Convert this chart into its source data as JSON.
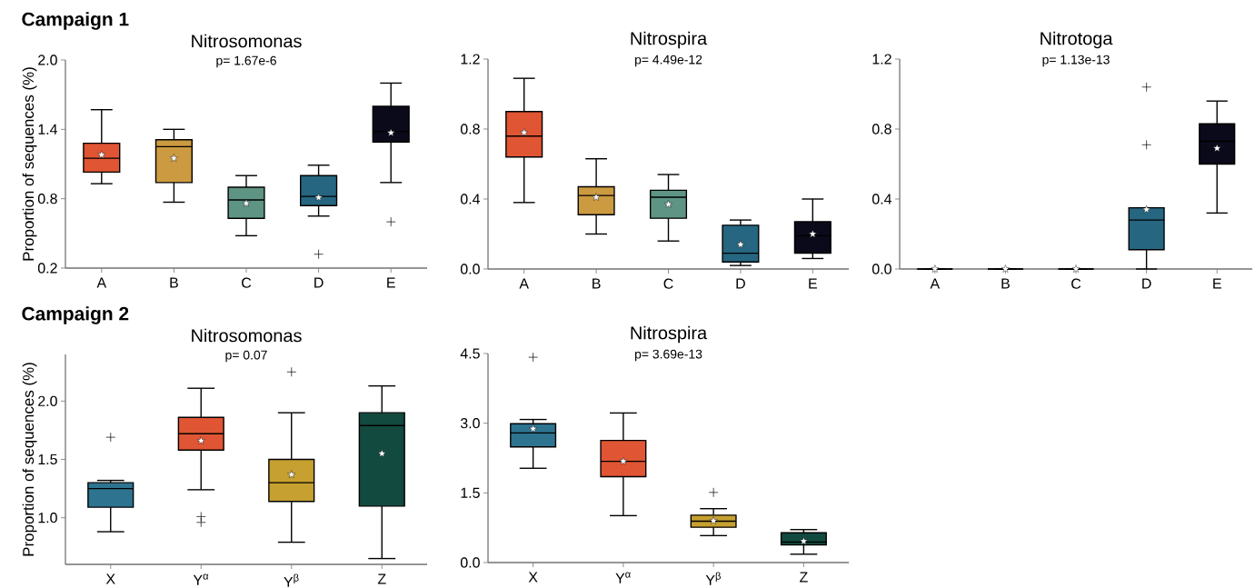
{
  "chart_data": [
    {
      "type": "box",
      "title": "Nitrosomonas",
      "subtitle": "p= 1.67e-6",
      "ylabel": "Proportion of sequences (%)",
      "annotations": [
        "Campaign 1"
      ],
      "categories": [
        "A",
        "B",
        "C",
        "D",
        "E"
      ],
      "colors": [
        "#e05533",
        "#cc9a40",
        "#5e9483",
        "#266680",
        "#0a0a1a"
      ],
      "boxes": [
        {
          "low": 0.93,
          "q1": 1.03,
          "median": 1.15,
          "q3": 1.28,
          "high": 1.57,
          "mean": 1.18
        },
        {
          "low": 0.77,
          "q1": 0.94,
          "median": 1.25,
          "q3": 1.31,
          "high": 1.4,
          "mean": 1.15
        },
        {
          "low": 0.48,
          "q1": 0.63,
          "median": 0.79,
          "q3": 0.9,
          "high": 1.0,
          "mean": 0.76
        },
        {
          "low": 0.65,
          "q1": 0.74,
          "median": 0.82,
          "q3": 1.0,
          "high": 1.09,
          "mean": 0.81,
          "outliers": [
            0.32
          ]
        },
        {
          "low": 0.94,
          "q1": 1.29,
          "median": 1.38,
          "q3": 1.6,
          "high": 1.8,
          "mean": 1.37,
          "outliers": [
            0.6
          ]
        }
      ],
      "ylim": [
        0.2,
        2.0
      ],
      "yticks": [
        0.2,
        0.8,
        1.4,
        {
          "value": 2.0,
          "label": "2.0"
        }
      ]
    },
    {
      "type": "box",
      "title": "Nitrospira",
      "subtitle": "p= 4.49e-12",
      "categories": [
        "A",
        "B",
        "C",
        "D",
        "E"
      ],
      "colors": [
        "#e05533",
        "#cc9a40",
        "#5e9483",
        "#266680",
        "#0a0a1a"
      ],
      "boxes": [
        {
          "low": 0.38,
          "q1": 0.64,
          "median": 0.76,
          "q3": 0.9,
          "high": 1.09,
          "mean": 0.78
        },
        {
          "low": 0.2,
          "q1": 0.31,
          "median": 0.42,
          "q3": 0.47,
          "high": 0.63,
          "mean": 0.41
        },
        {
          "low": 0.16,
          "q1": 0.29,
          "median": 0.41,
          "q3": 0.45,
          "high": 0.54,
          "mean": 0.37
        },
        {
          "low": 0.02,
          "q1": 0.04,
          "median": 0.09,
          "q3": 0.25,
          "high": 0.28,
          "mean": 0.14
        },
        {
          "low": 0.06,
          "q1": 0.09,
          "median": 0.19,
          "q3": 0.27,
          "high": 0.4,
          "mean": 0.2
        }
      ],
      "ylim": [
        0.0,
        1.2
      ],
      "yticks": [
        {
          "value": 0.0,
          "label": "0.0"
        },
        0.4,
        0.8,
        1.2
      ]
    },
    {
      "type": "box",
      "title": "Nitrotoga",
      "subtitle": "p= 1.13e-13",
      "categories": [
        "A",
        "B",
        "C",
        "D",
        "E"
      ],
      "colors": [
        "#000000",
        "#000000",
        "#000000",
        "#266680",
        "#0a0a1a"
      ],
      "boxes": [
        {
          "low": 0.0,
          "q1": 0.0,
          "median": 0.0,
          "q3": 0.0,
          "high": 0.0,
          "mean": 0.0
        },
        {
          "low": 0.0,
          "q1": 0.0,
          "median": 0.0,
          "q3": 0.0,
          "high": 0.0,
          "mean": 0.0
        },
        {
          "low": 0.0,
          "q1": 0.0,
          "median": 0.0,
          "q3": 0.0,
          "high": 0.0,
          "mean": 0.0
        },
        {
          "low": 0.0,
          "q1": 0.11,
          "median": 0.28,
          "q3": 0.35,
          "high": 0.35,
          "mean": 0.34,
          "outliers": [
            0.71,
            1.04
          ]
        },
        {
          "low": 0.32,
          "q1": 0.6,
          "median": 0.73,
          "q3": 0.83,
          "high": 0.96,
          "mean": 0.69
        }
      ],
      "ylim": [
        0.0,
        1.2
      ],
      "yticks": [
        {
          "value": 0.0,
          "label": "0.0"
        },
        0.4,
        0.8,
        1.2
      ]
    },
    {
      "type": "box",
      "title": "Nitrosomonas",
      "subtitle": "p= 0.07",
      "ylabel": "Proportion of sequences (%)",
      "annotations": [
        "Campaign 2"
      ],
      "categories": [
        "X",
        "Y$^{α}$",
        "Y$^{β}$",
        "Z"
      ],
      "colors": [
        "#2e7490",
        "#e05533",
        "#c6a030",
        "#124a40"
      ],
      "boxes": [
        {
          "low": 0.88,
          "q1": 1.09,
          "median": 1.25,
          "q3": 1.3,
          "high": 1.32,
          "outliers": [
            1.69
          ]
        },
        {
          "low": 1.24,
          "q1": 1.58,
          "median": 1.72,
          "q3": 1.86,
          "high": 2.11,
          "mean": 1.66,
          "outliers": [
            1.01,
            0.96
          ]
        },
        {
          "low": 0.79,
          "q1": 1.14,
          "median": 1.3,
          "q3": 1.5,
          "high": 1.9,
          "mean": 1.37,
          "outliers": [
            2.25
          ]
        },
        {
          "low": 0.65,
          "q1": 1.1,
          "median": 1.79,
          "q3": 1.9,
          "high": 2.13,
          "mean": 1.55
        }
      ],
      "ylim": [
        0.6,
        2.4
      ],
      "yticks": [
        {
          "value": 1.0,
          "label": "1.0"
        },
        1.5,
        {
          "value": 2.0,
          "label": "2.0"
        }
      ]
    },
    {
      "type": "box",
      "title": "Nitrospira",
      "subtitle": "p= 3.69e-13",
      "categories": [
        "X",
        "Y$^{α}$",
        "Y$^{β}$",
        "Z"
      ],
      "colors": [
        "#2e7490",
        "#e05533",
        "#c6a030",
        "#124a40"
      ],
      "boxes": [
        {
          "low": 2.03,
          "q1": 2.49,
          "median": 2.79,
          "q3": 2.99,
          "high": 3.08,
          "mean": 2.88,
          "outliers": [
            4.42
          ]
        },
        {
          "low": 1.01,
          "q1": 1.85,
          "median": 2.18,
          "q3": 2.63,
          "high": 3.22,
          "mean": 2.18
        },
        {
          "low": 0.58,
          "q1": 0.76,
          "median": 0.89,
          "q3": 1.02,
          "high": 1.16,
          "mean": 0.9,
          "outliers": [
            1.51
          ]
        },
        {
          "low": 0.18,
          "q1": 0.38,
          "median": 0.44,
          "q3": 0.64,
          "high": 0.71,
          "mean": 0.46
        }
      ],
      "ylim": [
        0.0,
        4.5
      ],
      "yticks": [
        {
          "value": 0.0,
          "label": "0.0"
        },
        1.5,
        {
          "value": 3.0,
          "label": "3.0"
        },
        4.5
      ]
    }
  ]
}
